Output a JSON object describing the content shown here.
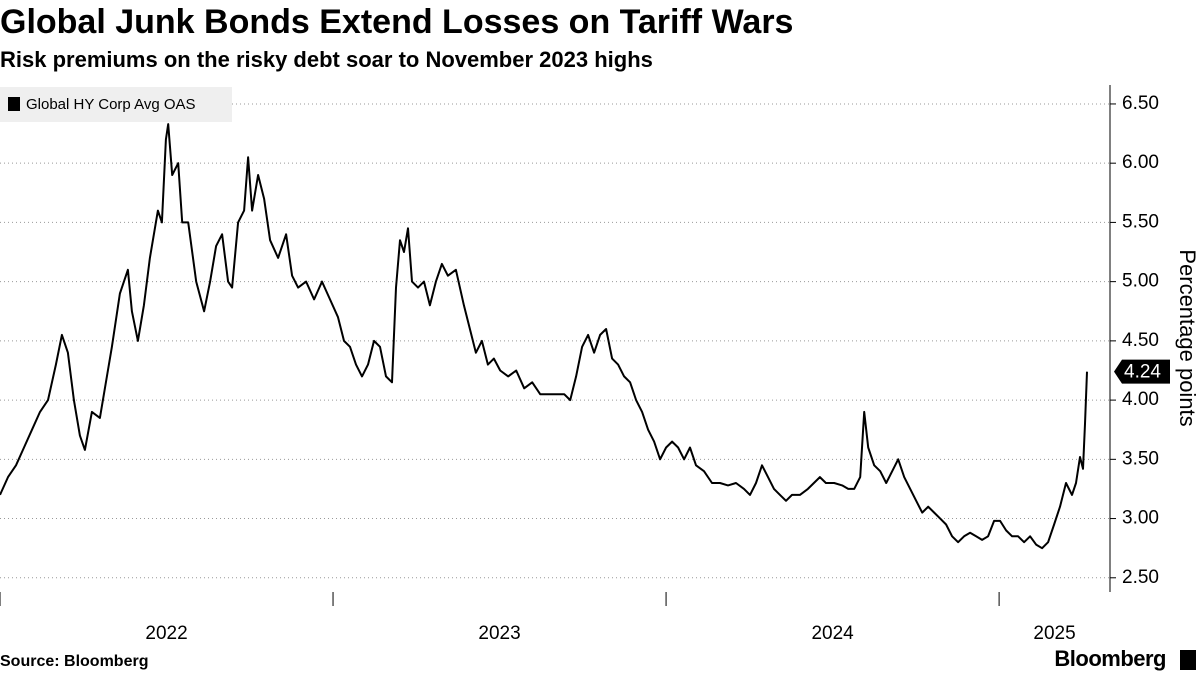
{
  "chart_data": {
    "type": "line",
    "title": "Global Junk Bonds Extend Losses on Tariff Wars",
    "subtitle": "Risk premiums on the risky debt soar to November 2023 highs",
    "y_axis_label": "Percentage points",
    "source": "Source: Bloomberg",
    "brand": "Bloomberg",
    "legend_position": "top-left",
    "grid": true,
    "xlim": [
      2022.0,
      2025.333
    ],
    "xticks": [
      2022,
      2023,
      2024,
      2025
    ],
    "ylim": [
      2.38,
      6.66
    ],
    "yticks": [
      {
        "value": 2.5,
        "label": "2.50"
      },
      {
        "value": 3.0,
        "label": "3.00"
      },
      {
        "value": 3.5,
        "label": "3.50"
      },
      {
        "value": 4.0,
        "label": "4.00"
      },
      {
        "value": 4.5,
        "label": "4.50"
      },
      {
        "value": 5.0,
        "label": "5.00"
      },
      {
        "value": 5.5,
        "label": "5.50"
      },
      {
        "value": 6.0,
        "label": "6.00"
      },
      {
        "value": 6.5,
        "label": "6.50"
      }
    ],
    "x": [
      2022.0,
      2022.024,
      2022.048,
      2022.072,
      2022.096,
      2022.12,
      2022.144,
      2022.168,
      2022.186,
      2022.204,
      2022.222,
      2022.24,
      2022.255,
      2022.276,
      2022.3,
      2022.324,
      2022.336,
      2022.36,
      2022.384,
      2022.396,
      2022.414,
      2022.432,
      2022.45,
      2022.474,
      2022.486,
      2022.498,
      2022.505,
      2022.517,
      2022.535,
      2022.547,
      2022.565,
      2022.589,
      2022.613,
      2022.631,
      2022.649,
      2022.667,
      2022.685,
      2022.697,
      2022.715,
      2022.733,
      2022.745,
      2022.757,
      2022.775,
      2022.793,
      2022.811,
      2022.835,
      2022.859,
      2022.877,
      2022.895,
      2022.919,
      2022.943,
      2022.967,
      2022.991,
      2023.015,
      2023.033,
      2023.051,
      2023.069,
      2023.087,
      2023.105,
      2023.123,
      2023.141,
      2023.159,
      2023.177,
      2023.189,
      2023.201,
      2023.213,
      2023.225,
      2023.237,
      2023.255,
      2023.273,
      2023.291,
      2023.309,
      2023.327,
      2023.345,
      2023.369,
      2023.393,
      2023.411,
      2023.429,
      2023.447,
      2023.465,
      2023.483,
      2023.502,
      2023.526,
      2023.55,
      2023.574,
      2023.598,
      2023.622,
      2023.646,
      2023.67,
      2023.694,
      2023.712,
      2023.73,
      2023.748,
      2023.766,
      2023.784,
      2023.802,
      2023.82,
      2023.838,
      2023.856,
      2023.874,
      2023.892,
      2023.91,
      2023.928,
      2023.946,
      2023.964,
      2023.982,
      2024.0,
      2024.018,
      2024.036,
      2024.054,
      2024.072,
      2024.09,
      2024.114,
      2024.138,
      2024.162,
      2024.186,
      2024.21,
      2024.234,
      2024.252,
      2024.27,
      2024.288,
      2024.306,
      2024.324,
      2024.342,
      2024.36,
      2024.378,
      2024.402,
      2024.426,
      2024.444,
      2024.462,
      2024.48,
      2024.505,
      2024.529,
      2024.547,
      2024.565,
      2024.583,
      2024.595,
      2024.607,
      2024.625,
      2024.643,
      2024.661,
      2024.679,
      2024.697,
      2024.715,
      2024.733,
      2024.751,
      2024.769,
      2024.787,
      2024.805,
      2024.823,
      2024.841,
      2024.859,
      2024.877,
      2024.895,
      2024.913,
      2024.931,
      2024.949,
      2024.967,
      2024.985,
      2025.003,
      2025.021,
      2025.039,
      2025.057,
      2025.075,
      2025.093,
      2025.111,
      2025.129,
      2025.147,
      2025.165,
      2025.183,
      2025.201,
      2025.219,
      2025.231,
      2025.243,
      2025.252,
      2025.258,
      2025.264
    ],
    "series": [
      {
        "name": "Global HY Corp Avg OAS",
        "color": "#000000",
        "values": [
          3.2,
          3.35,
          3.45,
          3.6,
          3.75,
          3.9,
          4.0,
          4.3,
          4.55,
          4.4,
          4.0,
          3.7,
          3.58,
          3.9,
          3.85,
          4.25,
          4.45,
          4.9,
          5.1,
          4.75,
          4.5,
          4.8,
          5.2,
          5.6,
          5.5,
          6.2,
          6.33,
          5.9,
          6.0,
          5.5,
          5.5,
          5.0,
          4.75,
          5.0,
          5.3,
          5.4,
          5.0,
          4.95,
          5.5,
          5.6,
          6.05,
          5.6,
          5.9,
          5.7,
          5.35,
          5.2,
          5.4,
          5.05,
          4.95,
          5.0,
          4.85,
          5.0,
          4.85,
          4.7,
          4.5,
          4.45,
          4.3,
          4.2,
          4.3,
          4.5,
          4.45,
          4.2,
          4.15,
          4.95,
          5.35,
          5.25,
          5.45,
          5.0,
          4.95,
          5.0,
          4.8,
          5.0,
          5.15,
          5.05,
          5.1,
          4.8,
          4.6,
          4.4,
          4.5,
          4.3,
          4.35,
          4.25,
          4.2,
          4.25,
          4.1,
          4.15,
          4.05,
          4.05,
          4.05,
          4.05,
          4.0,
          4.2,
          4.45,
          4.55,
          4.4,
          4.55,
          4.6,
          4.35,
          4.3,
          4.2,
          4.15,
          4.0,
          3.9,
          3.75,
          3.65,
          3.5,
          3.6,
          3.65,
          3.6,
          3.5,
          3.6,
          3.45,
          3.4,
          3.3,
          3.3,
          3.28,
          3.3,
          3.25,
          3.2,
          3.3,
          3.45,
          3.35,
          3.25,
          3.2,
          3.15,
          3.2,
          3.2,
          3.25,
          3.3,
          3.35,
          3.3,
          3.3,
          3.28,
          3.25,
          3.25,
          3.35,
          3.9,
          3.6,
          3.45,
          3.4,
          3.3,
          3.4,
          3.5,
          3.35,
          3.25,
          3.15,
          3.05,
          3.1,
          3.05,
          3.0,
          2.95,
          2.85,
          2.8,
          2.85,
          2.88,
          2.85,
          2.82,
          2.85,
          2.98,
          2.98,
          2.9,
          2.85,
          2.85,
          2.8,
          2.85,
          2.78,
          2.75,
          2.8,
          2.95,
          3.1,
          3.3,
          3.2,
          3.3,
          3.52,
          3.42,
          3.8,
          4.24
        ]
      }
    ]
  }
}
